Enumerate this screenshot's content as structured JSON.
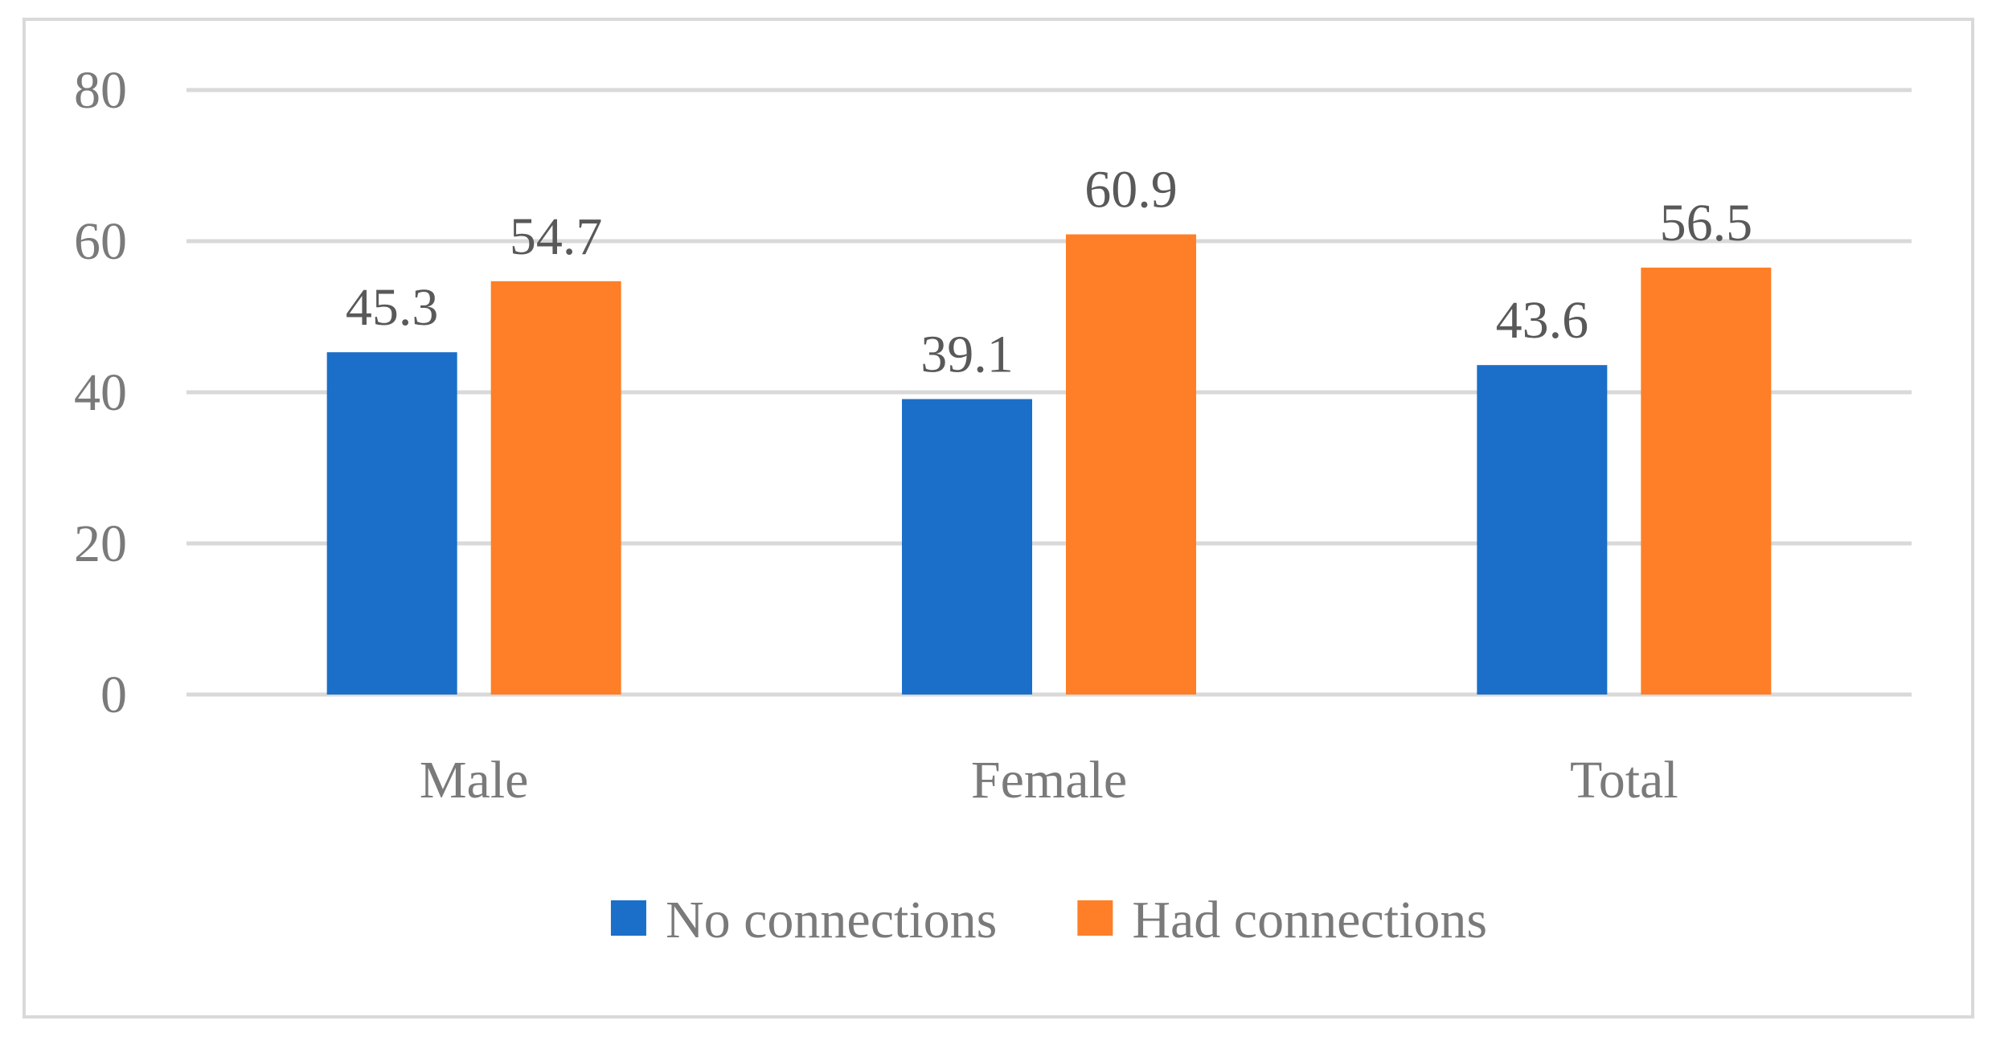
{
  "chart_data": {
    "type": "bar",
    "title": "",
    "xlabel": "",
    "ylabel": "",
    "categories": [
      "Male",
      "Female",
      "Total"
    ],
    "series": [
      {
        "name": "No connections",
        "values": [
          45.3,
          39.1,
          43.6
        ],
        "color": "#1b6fc8"
      },
      {
        "name": "Had connections",
        "values": [
          54.7,
          60.9,
          56.5
        ],
        "color": "#fe7f27"
      }
    ],
    "value_labels": [
      [
        "45.3",
        "39.1",
        "43.6"
      ],
      [
        "54.7",
        "60.9",
        "56.5"
      ]
    ],
    "ylim": [
      0,
      80
    ],
    "yticks": [
      "0",
      "20",
      "40",
      "60",
      "80"
    ],
    "ytick_values": [
      0,
      20,
      40,
      60,
      80
    ],
    "grid": true,
    "legend_position": "bottom"
  }
}
